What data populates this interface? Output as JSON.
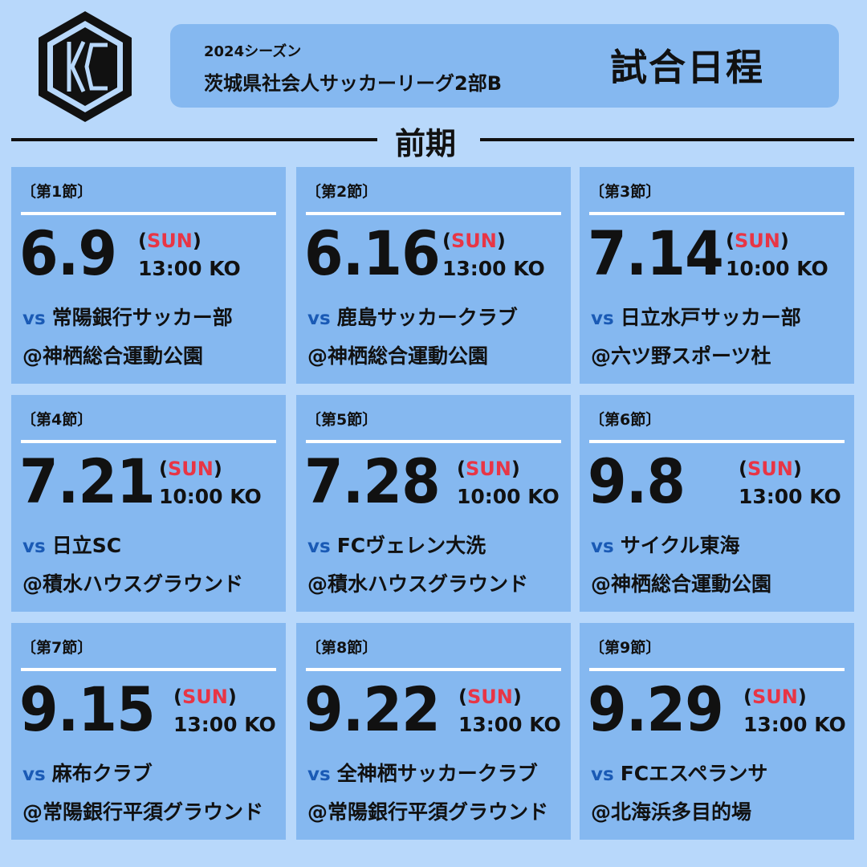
{
  "header": {
    "season": "2024シーズン",
    "league": "茨城県社会人サッカーリーグ2部B",
    "title": "試合日程"
  },
  "period": "前期",
  "colors": {
    "background": "#b8d8fb",
    "card": "#85b8f0",
    "sunday": "#e83545",
    "vs": "#1a5ab5"
  },
  "matches": [
    {
      "round": "〔第1節〕",
      "date": "6.9",
      "day_open": "(",
      "day": "SUN",
      "day_close": ")",
      "ko": "13:00 KO",
      "vs": "vs",
      "opponent": "常陽銀行サッカー部",
      "venue": "@神栖総合運動公園"
    },
    {
      "round": "〔第2節〕",
      "date": "6.16",
      "day_open": "(",
      "day": "SUN",
      "day_close": ")",
      "ko": "13:00 KO",
      "vs": "vs",
      "opponent": "鹿島サッカークラブ",
      "venue": "@神栖総合運動公園"
    },
    {
      "round": "〔第3節〕",
      "date": "7.14",
      "day_open": "(",
      "day": "SUN",
      "day_close": ")",
      "ko": "10:00 KO",
      "vs": "vs",
      "opponent": "日立水戸サッカー部",
      "venue": "@六ツ野スポーツ杜"
    },
    {
      "round": "〔第4節〕",
      "date": "7.21",
      "day_open": "(",
      "day": "SUN",
      "day_close": ")",
      "ko": "10:00 KO",
      "vs": "vs",
      "opponent": "日立SC",
      "venue": "@積水ハウスグラウンド"
    },
    {
      "round": "〔第5節〕",
      "date": "7.28",
      "day_open": "(",
      "day": "SUN",
      "day_close": ")",
      "ko": "10:00 KO",
      "vs": "vs",
      "opponent": "FCヴェレン大洗",
      "venue": "@積水ハウスグラウンド"
    },
    {
      "round": "〔第6節〕",
      "date": "9.8",
      "day_open": "(",
      "day": "SUN",
      "day_close": ")",
      "ko": "13:00 KO",
      "vs": "vs",
      "opponent": "サイクル東海",
      "venue": "@神栖総合運動公園"
    },
    {
      "round": "〔第7節〕",
      "date": "9.15",
      "day_open": "(",
      "day": "SUN",
      "day_close": ")",
      "ko": "13:00 KO",
      "vs": "vs",
      "opponent": "麻布クラブ",
      "venue": "@常陽銀行平須グラウンド"
    },
    {
      "round": "〔第8節〕",
      "date": "9.22",
      "day_open": "(",
      "day": "SUN",
      "day_close": ")",
      "ko": "13:00 KO",
      "vs": "vs",
      "opponent": "全神栖サッカークラブ",
      "venue": "@常陽銀行平須グラウンド"
    },
    {
      "round": "〔第9節〕",
      "date": "9.29",
      "day_open": "(",
      "day": "SUN",
      "day_close": ")",
      "ko": "13:00 KO",
      "vs": "vs",
      "opponent": "FCエスペランサ",
      "venue": "@北海浜多目的場"
    }
  ]
}
